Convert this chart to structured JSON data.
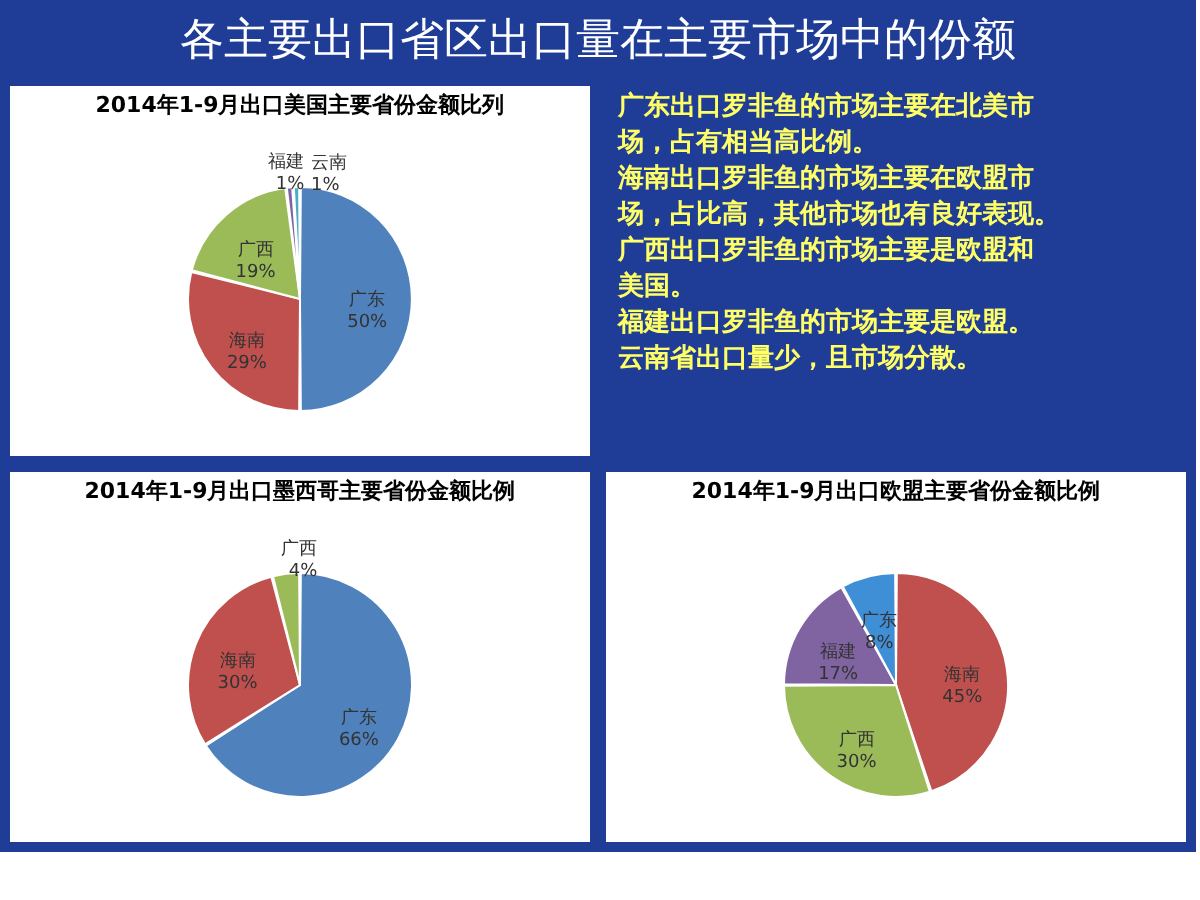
{
  "chart_data": [
    {
      "type": "other",
      "title": "各主要出口省区出口量在主要市场中的份额"
    },
    {
      "type": "pie",
      "title": "2014年1-9月出口美国主要省份金额比列",
      "categories": [
        "广东",
        "海南",
        "广西",
        "福建",
        "云南"
      ],
      "values": [
        50,
        29,
        19,
        1,
        1
      ],
      "value_labels": [
        "50%",
        "29%",
        "19%",
        "1%",
        "1%"
      ],
      "colors": [
        "#4f81bd",
        "#c0504d",
        "#9bbb59",
        "#8064a2",
        "#4bacc6"
      ]
    },
    {
      "type": "other",
      "annotations": [
        "广东出口罗非鱼的市场主要在北美市场，占有相当高比例。",
        "海南出口罗非鱼的市场主要在欧盟市场，占比高，其他市场也有良好表现。",
        "广西出口罗非鱼的市场主要是欧盟和美国。",
        "福建出口罗非鱼的市场主要是欧盟。",
        "云南省出口量少，且市场分散。"
      ]
    },
    {
      "type": "pie",
      "title": "2014年1-9月出口墨西哥主要省份金额比例",
      "categories": [
        "广东",
        "海南",
        "广西"
      ],
      "values": [
        66,
        30,
        4
      ],
      "value_labels": [
        "66%",
        "30%",
        "4%"
      ],
      "colors": [
        "#4f81bd",
        "#c0504d",
        "#9bbb59"
      ]
    },
    {
      "type": "pie",
      "title": "2014年1-9月出口欧盟主要省份金额比例",
      "categories": [
        "海南",
        "广西",
        "福建",
        "广东"
      ],
      "values": [
        45,
        30,
        17,
        8
      ],
      "value_labels": [
        "45%",
        "30%",
        "17%",
        "8%"
      ],
      "colors": [
        "#c0504d",
        "#9bbb59",
        "#8064a2",
        "#3f8fd6"
      ]
    }
  ]
}
